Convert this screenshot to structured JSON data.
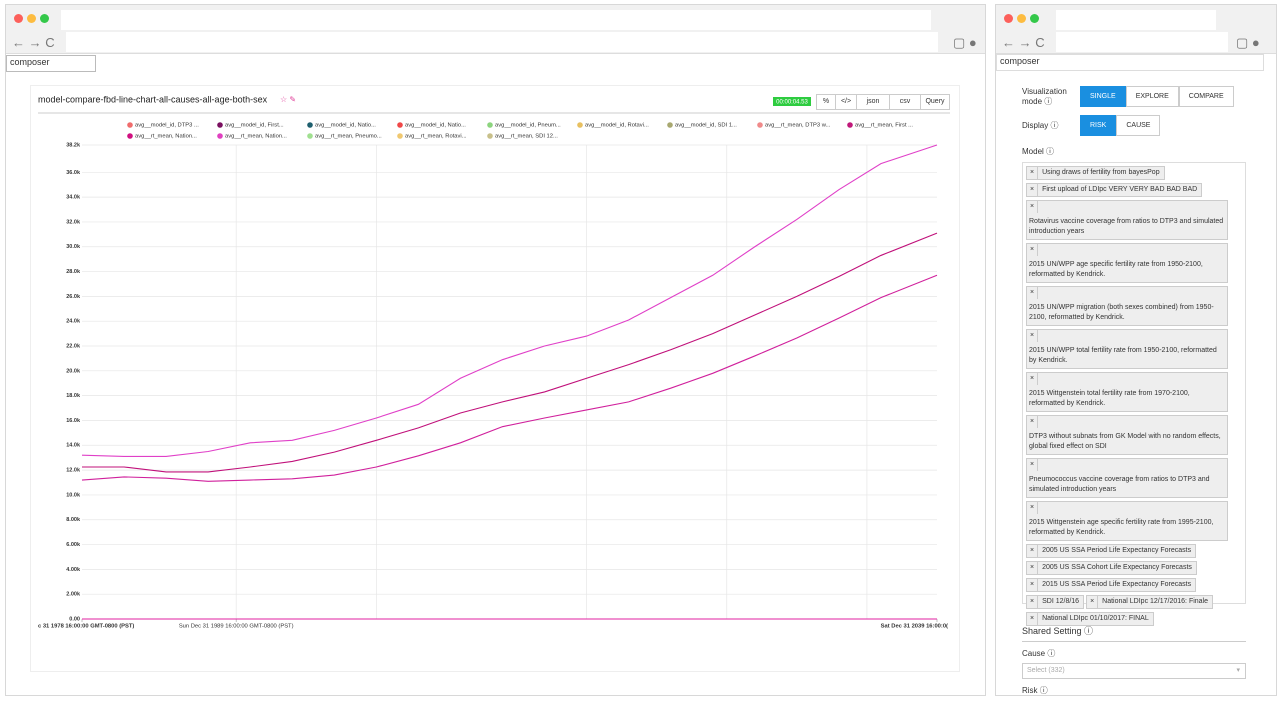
{
  "left_window": {
    "address": "composer",
    "chart": {
      "type": "line",
      "title": "model-compare-fbd-line-chart-all-causes-all-age-both-sex",
      "timer": "00:00:04.53",
      "toolbar": [
        "json",
        "csv",
        "Query"
      ],
      "legend": [
        {
          "name": "avg__model_id, DTP3 ...",
          "color": "#f06c6c"
        },
        {
          "name": "avg__model_id, First...",
          "color": "#7a1060"
        },
        {
          "name": "avg__model_id, Natio...",
          "color": "#1e5f6e"
        },
        {
          "name": "avg__model_id, Natio...",
          "color": "#f04848"
        },
        {
          "name": "avg__model_id, Pneum...",
          "color": "#8cd47e"
        },
        {
          "name": "avg__model_id, Rotavi...",
          "color": "#e8c060"
        },
        {
          "name": "avg__model_id, SDI 1...",
          "color": "#a8a870"
        },
        {
          "name": "avg__rt_mean, DTP3 w...",
          "color": "#f08a8a"
        },
        {
          "name": "avg__rt_mean, First ...",
          "color": "#c0187a"
        },
        {
          "name": "avg__rt_mean, Nation...",
          "color": "#d01080"
        },
        {
          "name": "avg__rt_mean, Nation...",
          "color": "#e040c0"
        },
        {
          "name": "avg__rt_mean, Pneumo...",
          "color": "#a0e090"
        },
        {
          "name": "avg__rt_mean, Rotavi...",
          "color": "#f0c870"
        },
        {
          "name": "avg__rt_mean, SDI 12...",
          "color": "#c8c08a"
        }
      ],
      "x": [
        1978,
        1981,
        1984,
        1987,
        1990,
        1993,
        1996,
        1999,
        2002,
        2005,
        2008,
        2011,
        2014,
        2017,
        2020,
        2023,
        2026,
        2029,
        2032,
        2035,
        2039
      ],
      "xlim": [
        1978,
        2039
      ],
      "xticks": [
        {
          "value": 1978,
          "label": "c 31 1978 16:00:00 GMT-0800 (PST)"
        },
        {
          "value": 1989,
          "label": "Sun Dec 31 1989 16:00:00 GMT-0800 (PST)"
        },
        {
          "value": 2039,
          "label": "Sat Dec 31 2039 16:00:0("
        }
      ],
      "xgrid": [
        1989,
        1999,
        2014,
        2024,
        2034
      ],
      "ylim": [
        0,
        38200
      ],
      "yticks": [
        {
          "value": 0,
          "label": "0.00"
        },
        {
          "value": 2000,
          "label": "2.00k"
        },
        {
          "value": 4000,
          "label": "4.00k"
        },
        {
          "value": 6000,
          "label": "6.00k"
        },
        {
          "value": 8000,
          "label": "8.00k"
        },
        {
          "value": 10000,
          "label": "10.0k"
        },
        {
          "value": 12000,
          "label": "12.0k"
        },
        {
          "value": 14000,
          "label": "14.0k"
        },
        {
          "value": 16000,
          "label": "16.0k"
        },
        {
          "value": 18000,
          "label": "18.0k"
        },
        {
          "value": 20000,
          "label": "20.0k"
        },
        {
          "value": 22000,
          "label": "22.0k"
        },
        {
          "value": 24000,
          "label": "24.0k"
        },
        {
          "value": 26000,
          "label": "26.0k"
        },
        {
          "value": 28000,
          "label": "28.0k"
        },
        {
          "value": 30000,
          "label": "30.0k"
        },
        {
          "value": 32000,
          "label": "32.0k"
        },
        {
          "value": 34000,
          "label": "34.0k"
        },
        {
          "value": 36000,
          "label": "36.0k"
        },
        {
          "value": 38200,
          "label": "38.2k"
        }
      ],
      "grid": true,
      "series": [
        {
          "color": "#e040c8",
          "values": [
            13200,
            13100,
            13100,
            13500,
            14200,
            14400,
            15200,
            16200,
            17300,
            19400,
            20900,
            22000,
            22800,
            24100,
            25900,
            27700,
            30000,
            32200,
            34600,
            36700,
            38200
          ]
        },
        {
          "color": "#c0107a",
          "values": [
            12250,
            12250,
            11850,
            11850,
            12250,
            12700,
            13450,
            14400,
            15400,
            16600,
            17500,
            18300,
            19400,
            20500,
            21700,
            23000,
            24500,
            26000,
            27600,
            29300,
            31100
          ]
        },
        {
          "color": "#d0209c",
          "values": [
            11200,
            11450,
            11350,
            11100,
            11200,
            11300,
            11600,
            12250,
            13150,
            14200,
            15500,
            16200,
            16850,
            17500,
            18600,
            19800,
            21200,
            22650,
            24250,
            25900,
            27700
          ]
        },
        {
          "color": "#e020a0",
          "values": [
            0,
            0,
            0,
            0,
            0,
            0,
            0,
            0,
            0,
            0,
            0,
            0,
            0,
            0,
            0,
            0,
            0,
            0,
            0,
            0,
            0
          ]
        }
      ]
    }
  },
  "right_window": {
    "address": "composer",
    "visualization_mode": {
      "label": "Visualization mode",
      "options": [
        "SINGLE",
        "EXPLORE",
        "COMPARE"
      ]
    },
    "display": {
      "label": "Display",
      "options": [
        "RISK",
        "CAUSE"
      ]
    },
    "model": {
      "label": "Model",
      "remove_label": "×",
      "tags": [
        "Using draws of fertility from bayesPop",
        "First upload of LDIpc VERY VERY BAD BAD BAD",
        "Rotavirus vaccine coverage from ratios to DTP3 and simulated introduction years",
        "2015 UN/WPP age specific fertility rate from 1950-2100, reformatted by Kendrick.",
        "2015 UN/WPP migration (both sexes combined) from 1950-2100, reformatted by Kendrick.",
        "2015 UN/WPP total fertility rate from 1950-2100, reformatted by Kendrick.",
        "2015 Wittgenstein total fertility rate from 1970-2100, reformatted by Kendrick.",
        "DTP3 without subnats from GK Model with no random effects, global fixed effect on SDI",
        "Pneumococcus vaccine coverage from ratios to DTP3 and simulated introduction years",
        "2015 Wittgenstein age specific fertility rate from 1995-2100, reformatted by Kendrick.",
        "2005 US SSA Period Life Expectancy Forecasts",
        "2005 US SSA Cohort Life Expectancy Forecasts",
        "2015 US SSA Period Life Expectancy Forecasts",
        "SDI 12/8/16",
        "National LDIpc 12/17/2016: Finale",
        "National LDIpc 01/10/2017: FINAL"
      ]
    },
    "shared_setting": "Shared Setting",
    "cause": {
      "label": "Cause",
      "placeholder": "Select (332)"
    },
    "risk_label": "Risk"
  }
}
